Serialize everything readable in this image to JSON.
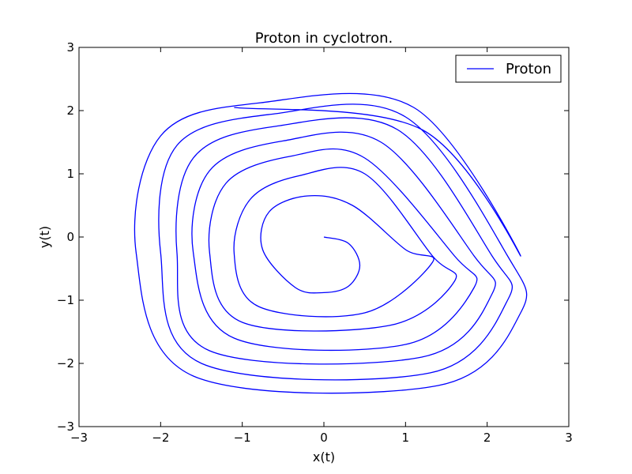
{
  "chart_data": {
    "type": "line",
    "title": "Proton in cyclotron.",
    "xlabel": "x(t)",
    "ylabel": "y(t)",
    "xlim": [
      -3,
      3
    ],
    "ylim": [
      -3,
      3
    ],
    "x_ticks": [
      -3,
      -2,
      -1,
      0,
      1,
      2,
      3
    ],
    "y_ticks": [
      -3,
      -2,
      -1,
      0,
      1,
      2,
      3
    ],
    "x_tick_labels": [
      "−3",
      "−2",
      "−1",
      "0",
      "1",
      "2",
      "3"
    ],
    "y_tick_labels": [
      "−3",
      "−2",
      "−1",
      "0",
      "1",
      "2",
      "3"
    ],
    "grid": false,
    "legend": {
      "position": "top-right",
      "entries": [
        "Proton"
      ]
    },
    "series": [
      {
        "name": "Proton",
        "color": "#0000ff",
        "x": [
          0,
          0.3,
          0.44,
          0.3,
          0,
          -0.35,
          -0.75,
          -0.67,
          -0.2,
          0.35,
          1.0,
          1.33,
          0.5,
          -0.8,
          -1.1,
          -0.9,
          -0.3,
          0.5,
          1.33,
          1.6,
          0.8,
          -1.0,
          -1.4,
          -1.2,
          -0.4,
          0.5,
          1.6,
          1.84,
          1.0,
          -1.1,
          -1.6,
          -1.4,
          -0.5,
          0.7,
          1.84,
          2.06,
          1.2,
          -1.4,
          -1.8,
          -1.6,
          -0.6,
          0.9,
          2.06,
          2.25,
          1.3,
          -1.5,
          -2.0,
          -1.8,
          -0.6,
          1.0,
          2.25,
          2.41,
          1.4,
          -1.6,
          -2.3,
          -2.0,
          -0.8,
          1.1,
          2.41,
          1.2,
          -1.1
        ],
        "y": [
          0,
          -0.1,
          -0.45,
          -0.78,
          -0.88,
          -0.8,
          -0.2,
          0.4,
          0.65,
          0.5,
          -0.2,
          -0.4,
          -1.2,
          -1.1,
          -0.25,
          0.6,
          0.97,
          1.0,
          -0.3,
          -0.7,
          -1.4,
          -1.35,
          -0.25,
          0.85,
          1.28,
          1.25,
          -0.3,
          -0.8,
          -1.7,
          -1.6,
          -0.25,
          1.05,
          1.52,
          1.5,
          -0.3,
          -0.9,
          -1.9,
          -1.8,
          -0.25,
          1.25,
          1.75,
          1.7,
          -0.3,
          -1.0,
          -2.15,
          -2.0,
          -0.25,
          1.45,
          1.95,
          1.9,
          -0.3,
          -1.2,
          -2.35,
          -2.2,
          -0.25,
          1.6,
          2.12,
          2.05,
          -0.3,
          1.7,
          2.05
        ]
      }
    ]
  }
}
